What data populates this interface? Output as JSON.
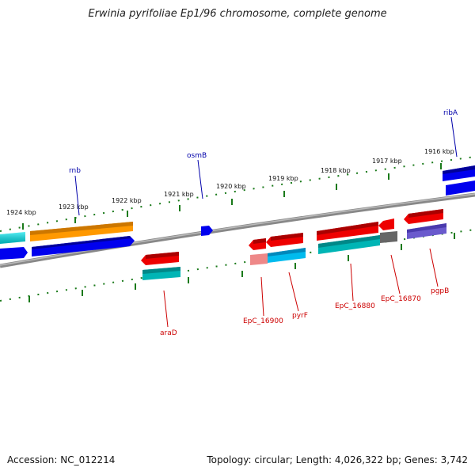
{
  "title": "Erwinia pyrifoliae Ep1/96 chromosome, complete genome",
  "footer": {
    "accession": "Accession: NC_012214",
    "topology": "Topology: circular; Length: 4,026,322 bp; Genes: 3,742"
  },
  "colors": {
    "backbone": "#7a7a7a",
    "tick": "#1a7a1a",
    "forward_label": "#0000aa",
    "reverse_label": "#cc0000"
  },
  "scale_labels": [
    "1924 kbp",
    "1923 kbp",
    "1922 kbp",
    "1921 kbp",
    "1920 kbp",
    "1919 kbp",
    "1918 kbp",
    "1917 kbp",
    "1916 kbp"
  ],
  "gene_labels": {
    "rnb": "rnb",
    "osmB": "osmB",
    "ribA": "ribA",
    "araD": "araD",
    "EpC_16900": "EpC_16900",
    "pyrF": "pyrF",
    "EpC_16880": "EpC_16880",
    "EpC_16870": "EpC_16870",
    "pgpB": "pgpB"
  },
  "feature_colors": {
    "cds_forward": "#0000ee",
    "cds_reverse": "#ee0000",
    "cyan": "#00e5ee",
    "orange": "#ff9900",
    "teal": "#009999",
    "light_blue": "#00bbee",
    "pink": "#ee8888",
    "grey": "#666666",
    "slate": "#6a5acd"
  }
}
